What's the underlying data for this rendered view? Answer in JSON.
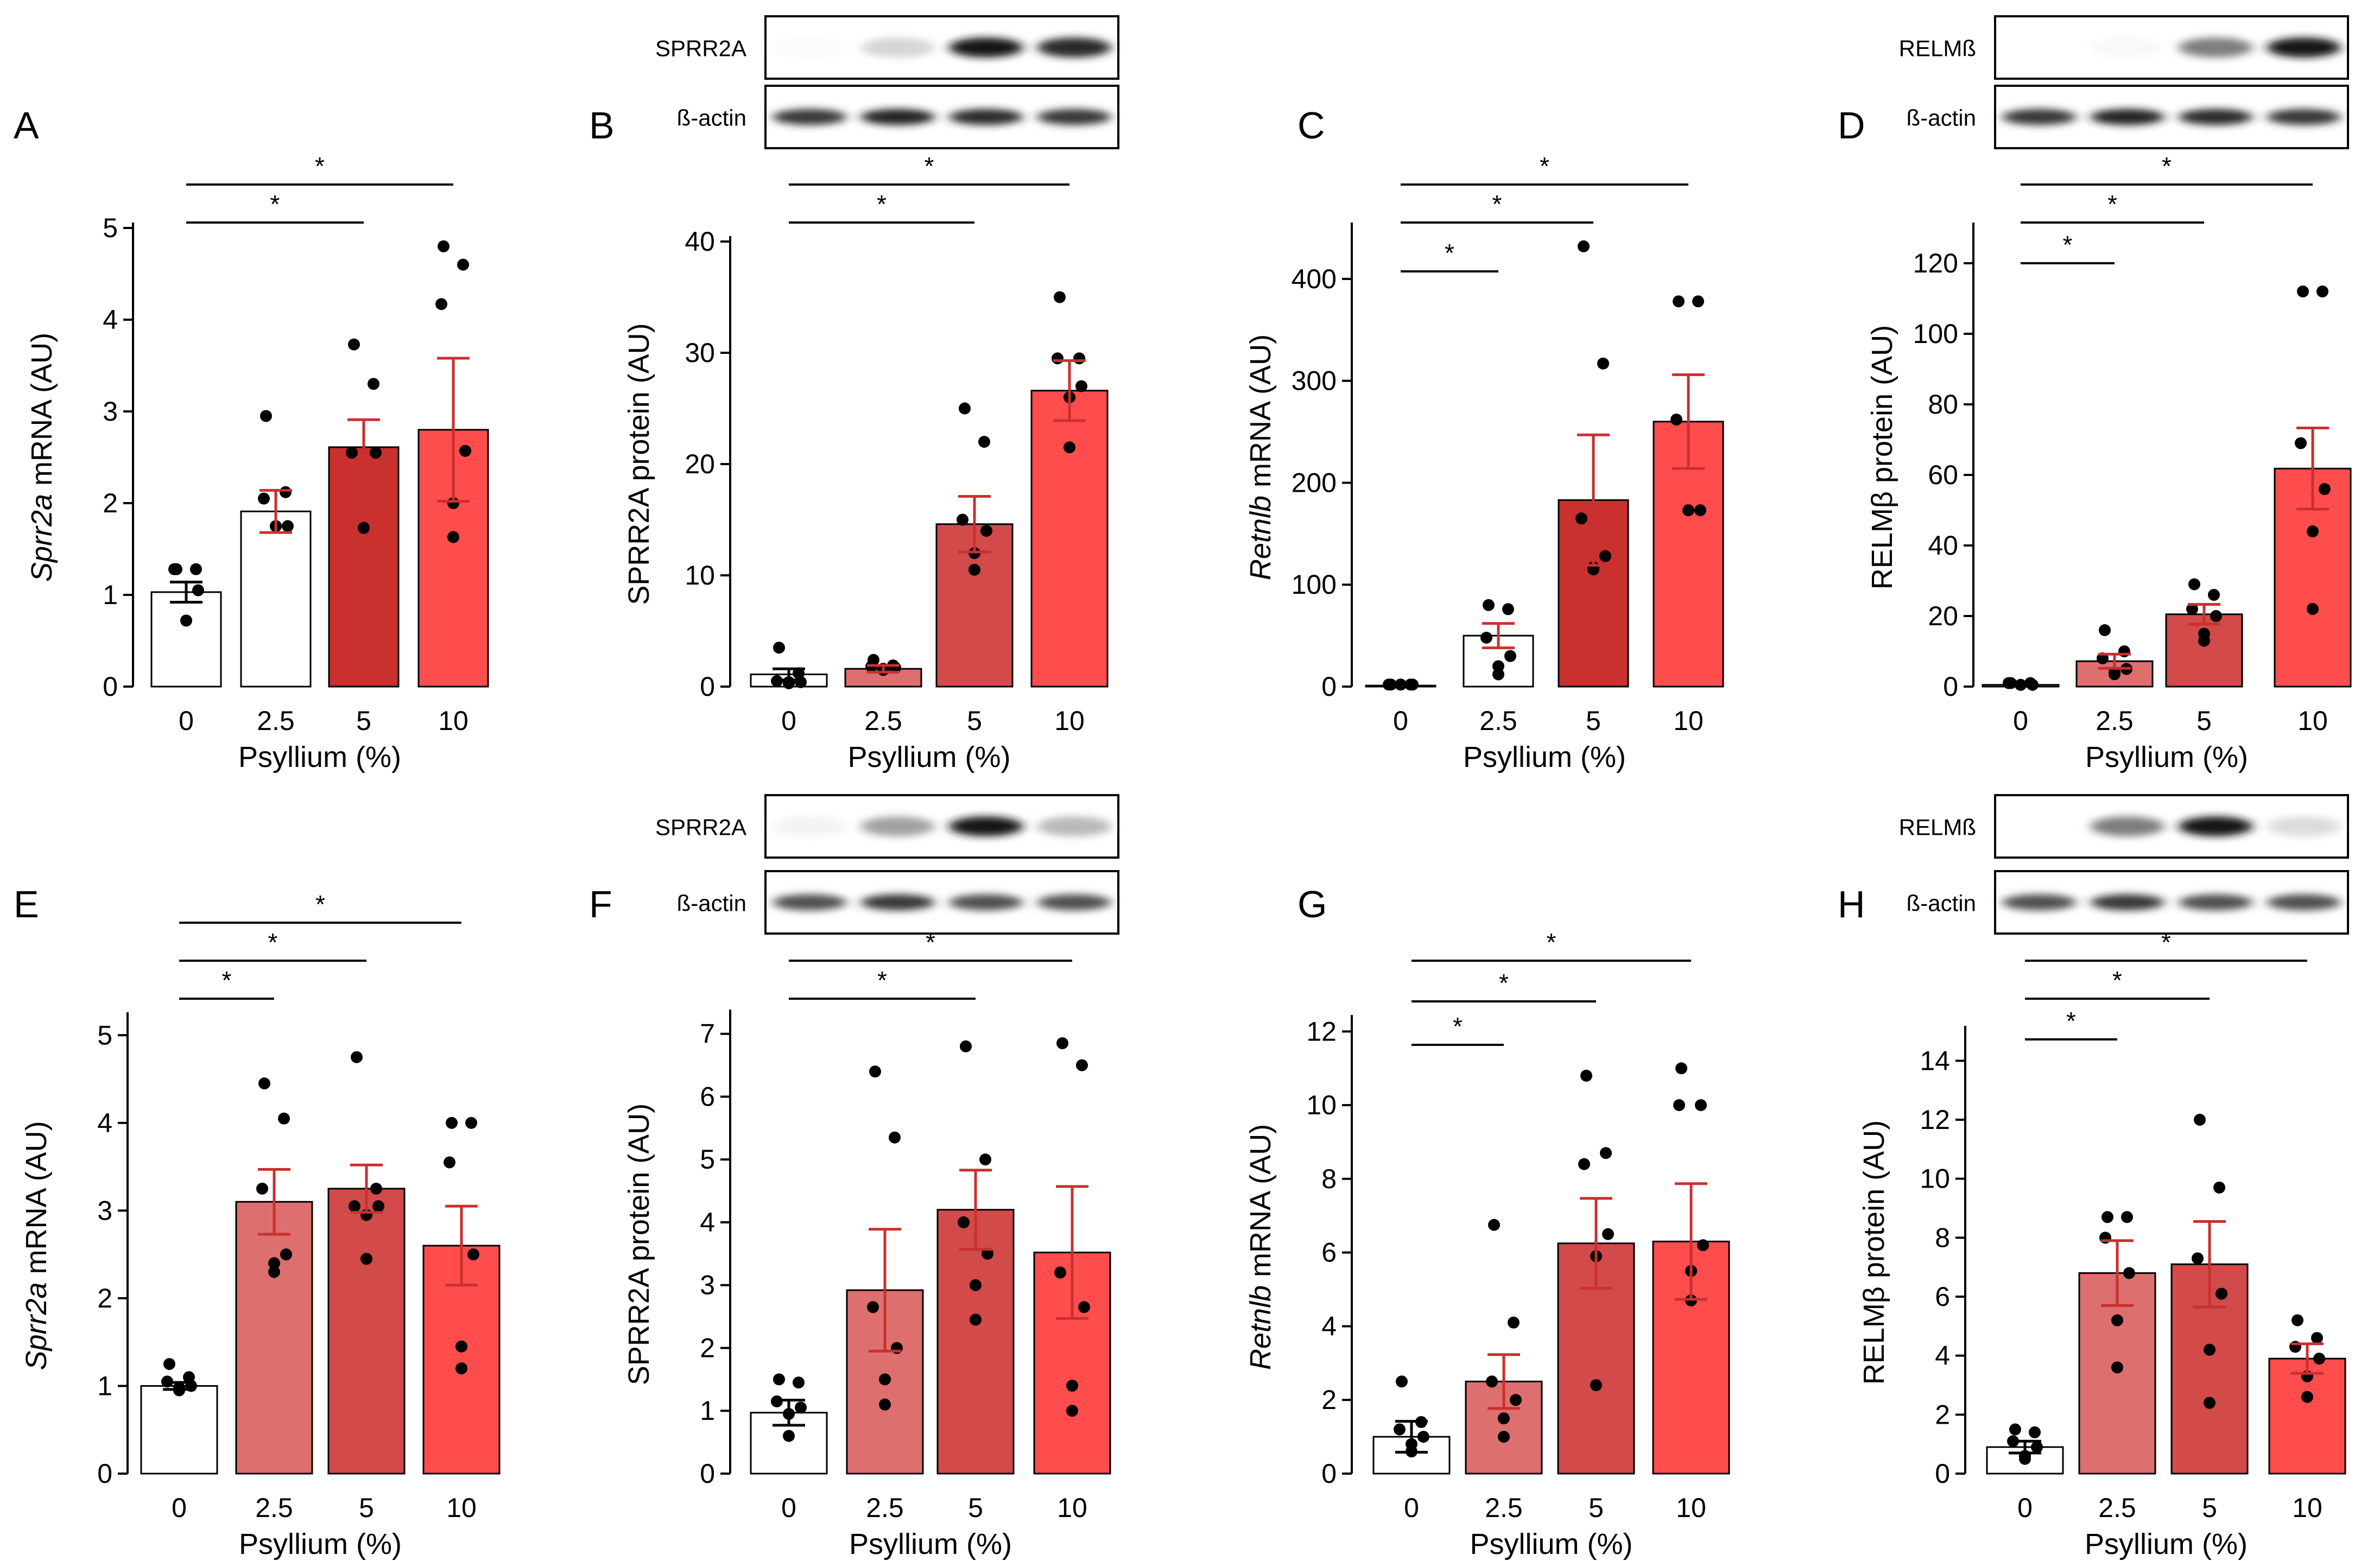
{
  "figure": {
    "xlabel": "Psyllium (%)"
  },
  "colors": {
    "g0": "#ffffff",
    "g25_white": "#ffffff",
    "g25": "#dd6f6f",
    "g5": "#d24a4a",
    "g5_dark": "#c9302e",
    "g10": "#ff4d4d",
    "error": "#c9302e",
    "dot": "#000000"
  },
  "chart_data": [
    {
      "panel": "A",
      "type": "bar",
      "categories": [
        "0",
        "2.5",
        "5",
        "10"
      ],
      "values": [
        1.03,
        1.91,
        2.61,
        2.8
      ],
      "sem": [
        0.11,
        0.23,
        0.3,
        0.78
      ],
      "points": [
        [
          1.28,
          1.28,
          1.28,
          1.05,
          0.72,
          0.72
        ],
        [
          2.95,
          2.12,
          2.05,
          1.75,
          1.75,
          1.75
        ],
        [
          3.73,
          3.3,
          2.55,
          2.55,
          1.73,
          1.73
        ],
        [
          4.8,
          4.6,
          4.17,
          2.57,
          2.0,
          1.63
        ]
      ],
      "ylabel_italic": "Sprr2a",
      "ylabel": " mRNA (AU)",
      "ylim": [
        0,
        5
      ],
      "yticks": [
        "0",
        "1",
        "2",
        "3",
        "4",
        "5"
      ],
      "sig": [
        {
          "from": 0,
          "to": 2,
          "label": "*"
        },
        {
          "from": 0,
          "to": 3,
          "label": "*"
        }
      ]
    },
    {
      "panel": "B",
      "type": "bar",
      "categories": [
        "0",
        "2.5",
        "5",
        "10"
      ],
      "values": [
        1.1,
        1.6,
        14.6,
        26.6
      ],
      "sem": [
        0.5,
        0.3,
        2.5,
        2.7
      ],
      "points": [
        [
          3.5,
          1.2,
          0.5,
          0.4,
          0.4,
          0.3
        ],
        [
          2.4,
          1.9,
          1.8,
          1.7,
          1.6,
          1.5
        ],
        [
          25,
          22,
          15,
          14,
          12,
          10.5
        ],
        [
          35,
          29.5,
          29.5,
          27,
          26,
          21.5
        ]
      ],
      "ylabel": "SPRR2A protein (AU)",
      "ylim": [
        0,
        40
      ],
      "yticks": [
        "0",
        "10",
        "20",
        "30",
        "40"
      ],
      "sig": [
        {
          "from": 0,
          "to": 2,
          "label": "*"
        },
        {
          "from": 0,
          "to": 3,
          "label": "*"
        }
      ],
      "blot": {
        "top": "SPRR2A",
        "bottom": "ß-actin"
      }
    },
    {
      "panel": "C",
      "type": "bar",
      "categories": [
        "0",
        "2.5",
        "5",
        "10"
      ],
      "values": [
        1,
        50,
        183,
        260
      ],
      "sem": [
        0.5,
        12,
        64,
        46
      ],
      "points": [
        [
          2,
          2,
          2,
          2,
          2,
          2
        ],
        [
          80,
          76,
          48,
          30,
          20,
          12
        ],
        [
          432,
          317,
          165,
          128,
          117,
          115
        ],
        [
          378,
          378,
          262,
          173,
          173,
          173
        ]
      ],
      "ylabel_italic": "Retnlb",
      "ylabel": " mRNA (AU)",
      "ylim": [
        0,
        450
      ],
      "yticks": [
        "0",
        "100",
        "200",
        "300",
        "400"
      ],
      "sig": [
        {
          "from": 0,
          "to": 1,
          "label": "*"
        },
        {
          "from": 0,
          "to": 2,
          "label": "*"
        },
        {
          "from": 0,
          "to": 3,
          "label": "*"
        }
      ]
    },
    {
      "panel": "D",
      "type": "bar",
      "categories": [
        "0",
        "2.5",
        "5",
        "10"
      ],
      "values": [
        0.5,
        7.2,
        20.5,
        61.8
      ],
      "sem": [
        0.2,
        2.0,
        2.8,
        11.5
      ],
      "points": [
        [
          1,
          1,
          1,
          0.5,
          0.5,
          0.5
        ],
        [
          16,
          10,
          8,
          5,
          4,
          3.5
        ],
        [
          29,
          26,
          22,
          20,
          15,
          13
        ],
        [
          112,
          112,
          69,
          56,
          44,
          22
        ]
      ],
      "ylabel": "RELMβ protein (AU)",
      "ylim": [
        0,
        130
      ],
      "yticks": [
        "0",
        "20",
        "40",
        "60",
        "80",
        "100",
        "120"
      ],
      "sig": [
        {
          "from": 0,
          "to": 1,
          "label": "*"
        },
        {
          "from": 0,
          "to": 2,
          "label": "*"
        },
        {
          "from": 0,
          "to": 3,
          "label": "*"
        }
      ],
      "blot": {
        "top": "RELMß",
        "bottom": "ß-actin"
      }
    },
    {
      "panel": "E",
      "type": "bar",
      "categories": [
        "0",
        "2.5",
        "5",
        "10"
      ],
      "values": [
        1.0,
        3.1,
        3.25,
        2.6
      ],
      "sem": [
        0.04,
        0.37,
        0.27,
        0.45
      ],
      "points": [
        [
          1.25,
          1.1,
          1.05,
          1.0,
          0.98,
          0.95
        ],
        [
          4.45,
          4.05,
          3.25,
          2.5,
          2.4,
          2.3
        ],
        [
          4.75,
          3.25,
          3.05,
          3.05,
          2.95,
          2.45
        ],
        [
          4.0,
          4.0,
          3.55,
          2.5,
          1.45,
          1.2
        ]
      ],
      "ylabel_italic": "Sprr2a",
      "ylabel": " mRNA (AU)",
      "ylim": [
        0,
        5.2
      ],
      "yticks": [
        "0",
        "1",
        "2",
        "3",
        "4",
        "5"
      ],
      "sig": [
        {
          "from": 0,
          "to": 1,
          "label": "*"
        },
        {
          "from": 0,
          "to": 2,
          "label": "*"
        },
        {
          "from": 0,
          "to": 3,
          "label": "*"
        }
      ]
    },
    {
      "panel": "F",
      "type": "bar",
      "categories": [
        "0",
        "2.5",
        "5",
        "10"
      ],
      "values": [
        0.97,
        2.92,
        4.2,
        3.52
      ],
      "sem": [
        0.2,
        0.97,
        0.63,
        1.05
      ],
      "points": [
        [
          1.5,
          1.45,
          1.15,
          1.05,
          0.95,
          0.6
        ],
        [
          6.4,
          5.35,
          2.65,
          2.0,
          1.5,
          1.1
        ],
        [
          6.8,
          5.0,
          4.0,
          3.5,
          3.0,
          2.45
        ],
        [
          6.85,
          6.5,
          3.2,
          2.65,
          1.4,
          1.0
        ]
      ],
      "ylabel": "SPRR2A protein (AU)",
      "ylim": [
        0,
        7.3
      ],
      "yticks": [
        "0",
        "1",
        "2",
        "3",
        "4",
        "5",
        "6",
        "7"
      ],
      "sig": [
        {
          "from": 0,
          "to": 2,
          "label": "*"
        },
        {
          "from": 0,
          "to": 3,
          "label": "*"
        }
      ],
      "blot": {
        "top": "SPRR2A",
        "bottom": "ß-actin"
      }
    },
    {
      "panel": "G",
      "type": "bar",
      "categories": [
        "0",
        "2.5",
        "5",
        "10"
      ],
      "values": [
        1.0,
        2.5,
        6.25,
        6.3
      ],
      "sem": [
        0.42,
        0.73,
        1.22,
        1.57
      ],
      "points": [
        [
          2.5,
          1.4,
          1.2,
          1.0,
          0.8,
          0.6
        ],
        [
          6.75,
          4.1,
          2.5,
          2.0,
          1.5,
          1.0
        ],
        [
          10.8,
          8.7,
          8.4,
          6.5,
          5.9,
          2.4
        ],
        [
          11.0,
          10.0,
          10.0,
          6.2,
          5.5,
          4.7
        ]
      ],
      "ylabel_italic": "Retnlb",
      "ylabel": " mRNA (AU)",
      "ylim": [
        0,
        12.3
      ],
      "yticks": [
        "0",
        "2",
        "4",
        "6",
        "8",
        "10",
        "12"
      ],
      "sig": [
        {
          "from": 0,
          "to": 1,
          "label": "*"
        },
        {
          "from": 0,
          "to": 2,
          "label": "*"
        },
        {
          "from": 0,
          "to": 3,
          "label": "*"
        }
      ]
    },
    {
      "panel": "H",
      "type": "bar",
      "categories": [
        "0",
        "2.5",
        "5",
        "10"
      ],
      "values": [
        0.9,
        6.8,
        7.1,
        3.9
      ],
      "sem": [
        0.2,
        1.1,
        1.45,
        0.5
      ],
      "points": [
        [
          1.5,
          1.4,
          1.1,
          0.9,
          0.6,
          0.5
        ],
        [
          8.7,
          8.7,
          8.0,
          6.8,
          5.2,
          3.6
        ],
        [
          12.0,
          9.7,
          7.3,
          6.1,
          4.2,
          2.4
        ],
        [
          5.2,
          4.6,
          4.3,
          3.9,
          3.3,
          2.6
        ]
      ],
      "ylabel": "RELMβ protein (AU)",
      "ylim": [
        0,
        15
      ],
      "yticks": [
        "0",
        "2",
        "4",
        "6",
        "8",
        "10",
        "12",
        "14"
      ],
      "sig": [
        {
          "from": 0,
          "to": 1,
          "label": "*"
        },
        {
          "from": 0,
          "to": 2,
          "label": "*"
        },
        {
          "from": 0,
          "to": 3,
          "label": "*"
        }
      ],
      "blot": {
        "top": "RELMß",
        "bottom": "ß-actin"
      }
    }
  ]
}
